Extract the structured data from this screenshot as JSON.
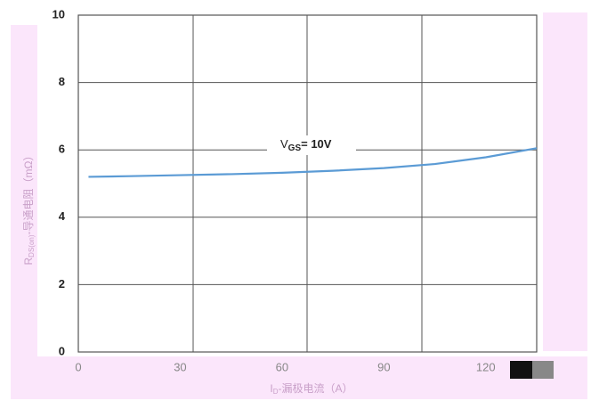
{
  "chart_data": {
    "type": "line",
    "annotation": {
      "main": "V",
      "sub": "GS",
      "rest": "= 10V"
    },
    "y_label": {
      "main": "R",
      "sub": "DS(on)",
      "rest": "-导通电阻（mΩ）"
    },
    "x_label": {
      "main": "I",
      "sub": "D",
      "rest": "-漏极电流（A）"
    },
    "x": [
      3,
      15,
      30,
      45,
      60,
      75,
      90,
      105,
      120,
      135
    ],
    "series": [
      {
        "name": "VGS= 10V",
        "color": "#5b9bd5",
        "values": [
          5.2,
          5.22,
          5.25,
          5.28,
          5.32,
          5.38,
          5.46,
          5.58,
          5.78,
          6.05
        ]
      }
    ],
    "xlim": [
      0,
      135
    ],
    "xticks": [
      0,
      30,
      60,
      90,
      120
    ],
    "ylim": [
      0,
      10
    ],
    "yticks": [
      0,
      2,
      4,
      6,
      8,
      10
    ],
    "grid": true
  }
}
